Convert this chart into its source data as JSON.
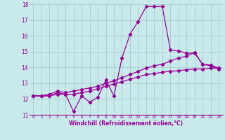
{
  "xlabel": "Windchill (Refroidissement éolien,°C)",
  "background_color": "#c8eaea",
  "grid_color": "#aacccc",
  "line_color": "#990099",
  "xlim": [
    -0.5,
    23.5
  ],
  "ylim": [
    11,
    18
  ],
  "xticks": [
    0,
    1,
    2,
    3,
    4,
    5,
    6,
    7,
    8,
    9,
    10,
    11,
    12,
    13,
    14,
    15,
    16,
    17,
    18,
    19,
    20,
    21,
    22,
    23
  ],
  "yticks": [
    11,
    12,
    13,
    14,
    15,
    16,
    17,
    18
  ],
  "line1_x": [
    0,
    1,
    2,
    3,
    4,
    5,
    6,
    7,
    8,
    9,
    10,
    11,
    12,
    13,
    14,
    15,
    16,
    17,
    18,
    19,
    20,
    21,
    22,
    23
  ],
  "line1_y": [
    12.2,
    12.2,
    12.2,
    12.4,
    12.3,
    11.2,
    12.2,
    11.8,
    12.1,
    13.2,
    12.2,
    14.6,
    16.1,
    16.9,
    17.85,
    17.85,
    17.85,
    15.1,
    15.05,
    14.9,
    14.9,
    14.2,
    14.1,
    13.9
  ],
  "line2_x": [
    0,
    1,
    2,
    3,
    4,
    5,
    6,
    7,
    8,
    9,
    10,
    11,
    12,
    13,
    14,
    15,
    16,
    17,
    18,
    19,
    20,
    21,
    22,
    23
  ],
  "line2_y": [
    12.2,
    12.2,
    12.3,
    12.5,
    12.4,
    12.5,
    12.6,
    12.7,
    12.8,
    13.0,
    13.15,
    13.35,
    13.55,
    13.75,
    13.95,
    14.1,
    14.2,
    14.4,
    14.6,
    14.7,
    14.95,
    14.2,
    14.15,
    13.95
  ],
  "line3_x": [
    0,
    1,
    2,
    3,
    4,
    5,
    6,
    7,
    8,
    9,
    10,
    11,
    12,
    13,
    14,
    15,
    16,
    17,
    18,
    19,
    20,
    21,
    22,
    23
  ],
  "line3_y": [
    12.2,
    12.2,
    12.2,
    12.3,
    12.3,
    12.3,
    12.4,
    12.5,
    12.65,
    12.8,
    12.95,
    13.1,
    13.25,
    13.4,
    13.55,
    13.6,
    13.7,
    13.75,
    13.8,
    13.85,
    13.9,
    13.9,
    13.95,
    13.95
  ]
}
